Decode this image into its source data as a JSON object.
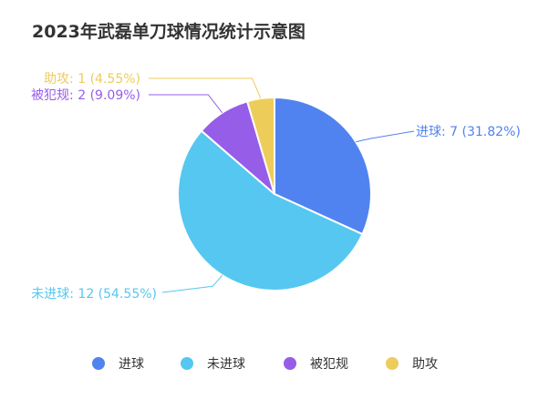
{
  "chart_data": {
    "type": "pie",
    "title": "2023年武磊单刀球情况统计示意图",
    "slices": [
      {
        "name": "进球",
        "value": 7,
        "percent": "31.82%",
        "color": "#5183f0"
      },
      {
        "name": "未进球",
        "value": 12,
        "percent": "54.55%",
        "color": "#56c7f0"
      },
      {
        "name": "被犯规",
        "value": 2,
        "percent": "9.09%",
        "color": "#965de8"
      },
      {
        "name": "助攻",
        "value": 1,
        "percent": "4.55%",
        "color": "#edcc5a"
      }
    ],
    "legend_position": "bottom",
    "label_format": "{name}: {value} ({percent})"
  }
}
